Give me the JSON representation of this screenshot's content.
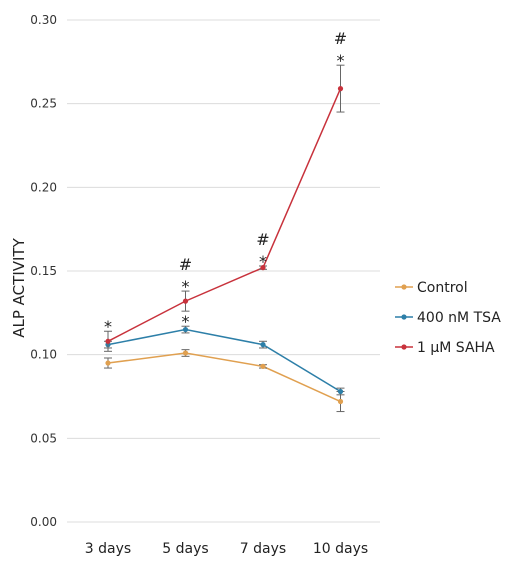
{
  "chart_data": {
    "type": "line",
    "ylabel": "ALP ACTIVITY",
    "xlabel": "",
    "title": "",
    "categories": [
      "3 days",
      "5 days",
      "7 days",
      "10 days"
    ],
    "ylim": [
      0,
      0.3
    ],
    "yticks": [
      "0.00",
      "0.05",
      "0.10",
      "0.15",
      "0.20",
      "0.25",
      "0.30"
    ],
    "grid": true,
    "legend_position": "right",
    "series": [
      {
        "name": "Control",
        "color": "#e0a050",
        "values": [
          0.095,
          0.101,
          0.093,
          0.072
        ],
        "errors": [
          0.003,
          0.002,
          0.001,
          0.006
        ]
      },
      {
        "name": "400 nM TSA",
        "color": "#2d7fa8",
        "values": [
          0.106,
          0.115,
          0.106,
          0.078
        ],
        "errors": [
          0.002,
          0.002,
          0.002,
          0.002
        ]
      },
      {
        "name": "1 μM SAHA",
        "color": "#c8323c",
        "values": [
          0.108,
          0.132,
          0.152,
          0.259
        ],
        "errors": [
          0.006,
          0.006,
          0.001,
          0.014
        ]
      }
    ],
    "annotations": [
      {
        "category": "3 days",
        "y": 0.108,
        "err": 0.006,
        "text": "*"
      },
      {
        "category": "5 days",
        "y": 0.115,
        "err": 0.002,
        "text": "*"
      },
      {
        "category": "5 days",
        "y": 0.132,
        "err": 0.006,
        "text": "#\n*"
      },
      {
        "category": "7 days",
        "y": 0.152,
        "err": 0.001,
        "text": "#\n*"
      },
      {
        "category": "10 days",
        "y": 0.259,
        "err": 0.014,
        "text": "#\n*"
      }
    ]
  }
}
